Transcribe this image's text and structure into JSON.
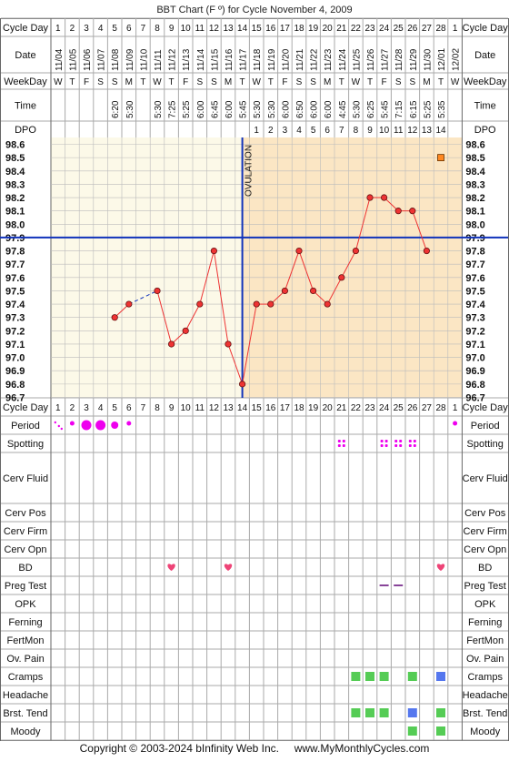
{
  "title": "BBT Chart (F º) for Cycle November 4, 2009",
  "footer": "Copyright © 2003-2024 bInfinity Web Inc.     www.MyMonthlyCycles.com",
  "row_labels": {
    "cycle_day": "Cycle Day",
    "date": "Date",
    "weekday": "WeekDay",
    "time": "Time",
    "dpo": "DPO",
    "period": "Period",
    "spotting": "Spotting",
    "cerv_fluid": "Cerv Fluid",
    "cerv_pos": "Cerv Pos",
    "cerv_firm": "Cerv Firm",
    "cerv_opn": "Cerv Opn",
    "bd": "BD",
    "preg_test": "Preg Test",
    "opk": "OPK",
    "ferning": "Ferning",
    "fertmon": "FertMon",
    "ov_pain": "Ov. Pain",
    "cramps": "Cramps",
    "headache": "Headache",
    "brst_tend": "Brst. Tend",
    "moody": "Moody"
  },
  "ovulation_label": "OVULATION",
  "colors": {
    "grid": "#aaaaaa",
    "temp_line": "#ee3333",
    "dot": "#ee3333",
    "coverline": "#1133bb",
    "ovulation_line": "#1133bb",
    "pre_bg": "#fcf9e8",
    "post_bg": "#fbe6c4",
    "period": "#ee00ee",
    "bd": "#ee4477",
    "green": "#55cc55",
    "blue": "#5577ee",
    "preg": "#884499"
  },
  "chart_data": {
    "type": "line",
    "title": "BBT Chart (F º) for Cycle November 4, 2009",
    "cycle_days": [
      "1",
      "2",
      "3",
      "4",
      "5",
      "6",
      "7",
      "8",
      "9",
      "10",
      "11",
      "12",
      "13",
      "14",
      "15",
      "16",
      "17",
      "18",
      "19",
      "20",
      "21",
      "22",
      "23",
      "24",
      "25",
      "26",
      "27",
      "28",
      "1"
    ],
    "dates": [
      "11/04",
      "11/05",
      "11/06",
      "11/07",
      "11/08",
      "11/09",
      "11/10",
      "11/11",
      "11/12",
      "11/13",
      "11/14",
      "11/15",
      "11/16",
      "11/17",
      "11/18",
      "11/19",
      "11/20",
      "11/21",
      "11/22",
      "11/23",
      "11/24",
      "11/25",
      "11/26",
      "11/27",
      "11/28",
      "11/29",
      "11/30",
      "12/01",
      "12/02"
    ],
    "weekdays": [
      "W",
      "T",
      "F",
      "S",
      "S",
      "M",
      "T",
      "W",
      "T",
      "F",
      "S",
      "S",
      "M",
      "T",
      "W",
      "T",
      "F",
      "S",
      "S",
      "M",
      "T",
      "W",
      "T",
      "F",
      "S",
      "S",
      "M",
      "T",
      "W"
    ],
    "times": [
      "",
      "",
      "",
      "",
      "6:20",
      "5:30",
      "",
      "5:30",
      "7:25",
      "5:25",
      "6:00",
      "6:45",
      "6:00",
      "5:45",
      "5:30",
      "5:30",
      "6:00",
      "6:50",
      "6:00",
      "6:00",
      "4:45",
      "5:30",
      "6:25",
      "5:45",
      "7:15",
      "6:15",
      "5:25",
      "5:35",
      ""
    ],
    "dpo": [
      "",
      "",
      "",
      "",
      "",
      "",
      "",
      "",
      "",
      "",
      "",
      "",
      "",
      "",
      "1",
      "2",
      "3",
      "4",
      "5",
      "6",
      "7",
      "8",
      "9",
      "10",
      "11",
      "12",
      "13",
      "14",
      ""
    ],
    "temperatures": [
      null,
      null,
      null,
      null,
      97.3,
      97.4,
      null,
      97.5,
      97.1,
      97.2,
      97.4,
      97.8,
      97.1,
      96.8,
      97.4,
      97.4,
      97.5,
      97.8,
      97.5,
      97.4,
      97.6,
      97.8,
      98.2,
      98.2,
      98.1,
      98.1,
      97.8,
      null,
      null
    ],
    "dashed_segment_days": [
      6,
      8
    ],
    "ovulation_day": 14,
    "coverline": 97.9,
    "marker_square": {
      "day": 28,
      "temp": 98.5
    },
    "y_ticks": [
      "98.6",
      "98.5",
      "98.4",
      "98.3",
      "98.2",
      "98.1",
      "98.0",
      "97.9",
      "97.8",
      "97.7",
      "97.6",
      "97.5",
      "97.4",
      "97.3",
      "97.2",
      "97.1",
      "97.0",
      "96.9",
      "96.8",
      "96.7"
    ],
    "ylim": [
      96.7,
      98.6
    ],
    "period": {
      "1": "spot",
      "2": "light",
      "3": "heavy",
      "4": "heavy",
      "5": "medium",
      "6": "light",
      "29": "light"
    },
    "spotting_days": [
      21,
      24,
      25,
      26
    ],
    "bd_days": [
      9,
      13,
      28
    ],
    "preg_test_days": [
      24,
      25
    ],
    "cramps": {
      "22": "green",
      "23": "green",
      "24": "green",
      "26": "green",
      "28": "blue"
    },
    "brst_tend": {
      "22": "green",
      "23": "green",
      "24": "green",
      "26": "blue",
      "28": "green"
    },
    "moody": {
      "26": "green",
      "28": "green"
    }
  }
}
